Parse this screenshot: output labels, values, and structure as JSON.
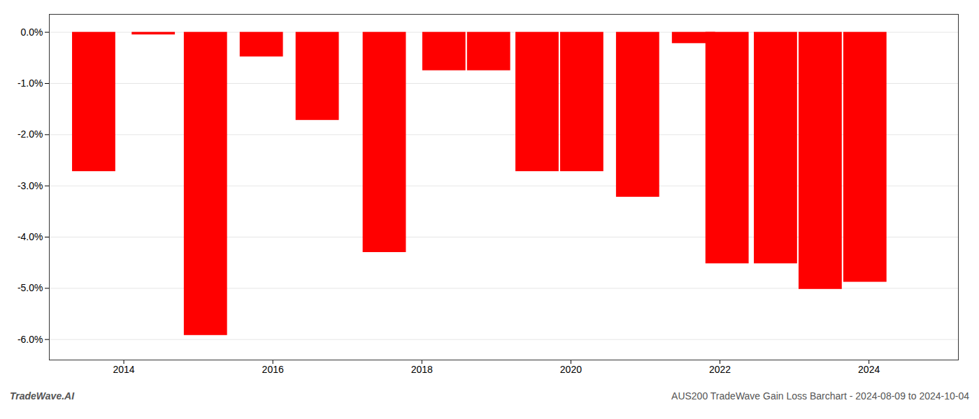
{
  "chart_data": {
    "type": "bar",
    "x": [
      2013.6,
      2014.4,
      2015.1,
      2015.85,
      2016.6,
      2017.5,
      2018.3,
      2018.9,
      2019.55,
      2020.15,
      2020.9,
      2021.65,
      2022.1,
      2022.75,
      2023.35,
      2023.95
    ],
    "values": [
      -2.72,
      -0.05,
      -5.92,
      -0.48,
      -1.72,
      -4.3,
      -0.75,
      -0.75,
      -2.72,
      -2.72,
      -3.22,
      -0.22,
      -4.52,
      -4.52,
      -5.02,
      -4.88
    ],
    "color": "#ff0000",
    "xlim": [
      2013.0,
      2025.2
    ],
    "xticks": [
      2014,
      2016,
      2018,
      2020,
      2022,
      2024
    ],
    "ylim": [
      -6.4,
      0.35
    ],
    "yticks": [
      {
        "value": 0.0,
        "label": "0.0%"
      },
      {
        "value": -1.0,
        "label": "-1.0%"
      },
      {
        "value": -2.0,
        "label": "-2.0%"
      },
      {
        "value": -3.0,
        "label": "-3.0%"
      },
      {
        "value": -4.0,
        "label": "-4.0%"
      },
      {
        "value": -5.0,
        "label": "-5.0%"
      },
      {
        "value": -6.0,
        "label": "-6.0%"
      }
    ],
    "grid": "y",
    "annotations": [
      "TradeWave.AI",
      "AUS200 TradeWave Gain Loss Barchart - 2024-08-09 to 2024-10-04"
    ]
  }
}
